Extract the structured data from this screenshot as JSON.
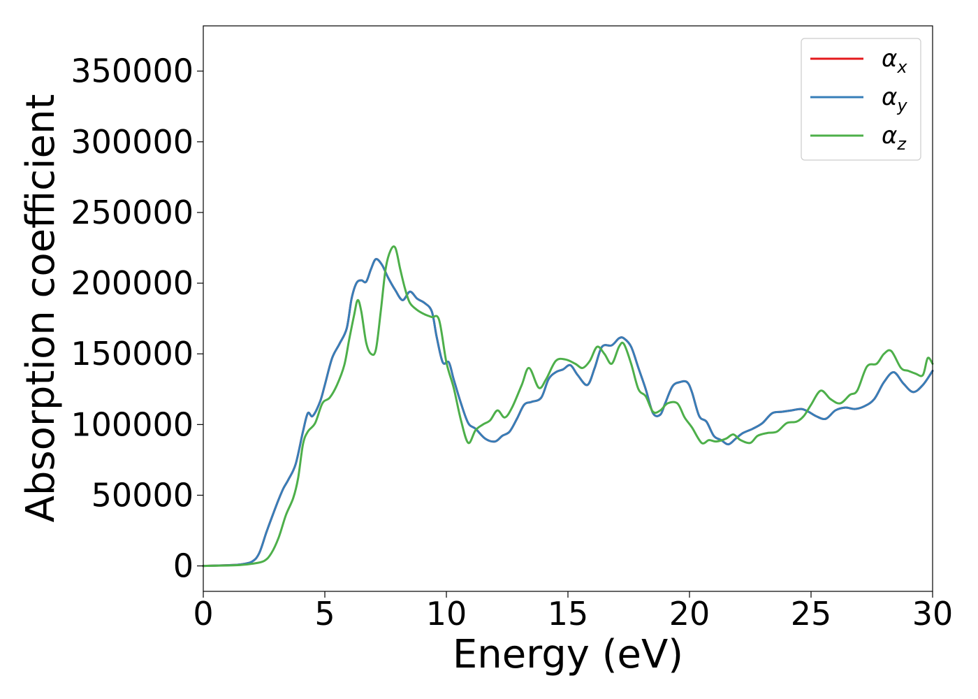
{
  "chart_data": {
    "type": "line",
    "title": "",
    "xlabel": "Energy (eV)",
    "ylabel": "Absorption coefficient",
    "xlim": [
      0,
      30
    ],
    "ylim": [
      -18000,
      382000
    ],
    "x_ticks": [
      0,
      5,
      10,
      15,
      20,
      25,
      30
    ],
    "y_ticks": [
      0,
      50000,
      100000,
      150000,
      200000,
      250000,
      300000,
      350000
    ],
    "grid": false,
    "legend_placement": "top-right",
    "series": [
      {
        "name": "αx",
        "legend_symbol": "α",
        "legend_subscript": "x",
        "color": "#e41a1c",
        "x": [
          0,
          1,
          1.5,
          2,
          2.3,
          2.6,
          2.9,
          3.1,
          3.3,
          3.5,
          3.8,
          4.1,
          4.3,
          4.5,
          4.8,
          5.0,
          5.3,
          5.6,
          5.9,
          6.1,
          6.3,
          6.5,
          6.7,
          6.9,
          7.1,
          7.35,
          7.6,
          7.9,
          8.2,
          8.5,
          8.8,
          9.1,
          9.4,
          9.6,
          9.85,
          10.1,
          10.3,
          10.6,
          10.9,
          11.2,
          11.6,
          12.0,
          12.3,
          12.6,
          12.9,
          13.2,
          13.5,
          13.9,
          14.2,
          14.5,
          14.8,
          15.1,
          15.4,
          15.8,
          16.1,
          16.4,
          16.8,
          17.1,
          17.3,
          17.6,
          17.9,
          18.2,
          18.5,
          18.8,
          19.0,
          19.3,
          19.6,
          19.9,
          20.1,
          20.4,
          20.7,
          21.0,
          21.3,
          21.6,
          21.9,
          22.2,
          22.6,
          23.0,
          23.4,
          23.8,
          24.2,
          24.6,
          24.9,
          25.2,
          25.6,
          26.0,
          26.4,
          26.8,
          27.2,
          27.6,
          28.0,
          28.4,
          28.8,
          29.2,
          29.6,
          30.0
        ],
        "values": [
          0,
          500,
          1000,
          3000,
          9000,
          24000,
          38000,
          47000,
          55000,
          61000,
          72000,
          95000,
          108000,
          106000,
          116000,
          128000,
          147000,
          157000,
          168000,
          189000,
          200000,
          202000,
          201000,
          210000,
          217000,
          213000,
          204000,
          195000,
          188000,
          194000,
          189000,
          186000,
          180000,
          162000,
          144000,
          144000,
          132000,
          115000,
          101000,
          97000,
          90000,
          88000,
          92000,
          95000,
          104000,
          114000,
          116000,
          119000,
          132000,
          137000,
          139000,
          142000,
          135000,
          128000,
          140000,
          155000,
          156000,
          161000,
          161000,
          155000,
          140000,
          125000,
          108000,
          107000,
          115000,
          127000,
          130000,
          130000,
          123000,
          106000,
          102000,
          92000,
          89000,
          86000,
          90000,
          94000,
          97000,
          101000,
          108000,
          109000,
          110000,
          111000,
          109000,
          106000,
          104000,
          110000,
          112000,
          111000,
          113000,
          118000,
          130000,
          137000,
          129000,
          123000,
          128000,
          138000
        ]
      },
      {
        "name": "αy",
        "legend_symbol": "α",
        "legend_subscript": "y",
        "color": "#377eb8",
        "x": [
          0,
          1,
          1.5,
          2,
          2.3,
          2.6,
          2.9,
          3.1,
          3.3,
          3.5,
          3.8,
          4.1,
          4.3,
          4.5,
          4.8,
          5.0,
          5.3,
          5.6,
          5.9,
          6.1,
          6.3,
          6.5,
          6.7,
          6.9,
          7.1,
          7.35,
          7.6,
          7.9,
          8.2,
          8.5,
          8.8,
          9.1,
          9.4,
          9.6,
          9.85,
          10.1,
          10.3,
          10.6,
          10.9,
          11.2,
          11.6,
          12.0,
          12.3,
          12.6,
          12.9,
          13.2,
          13.5,
          13.9,
          14.2,
          14.5,
          14.8,
          15.1,
          15.4,
          15.8,
          16.1,
          16.4,
          16.8,
          17.1,
          17.3,
          17.6,
          17.9,
          18.2,
          18.5,
          18.8,
          19.0,
          19.3,
          19.6,
          19.9,
          20.1,
          20.4,
          20.7,
          21.0,
          21.3,
          21.6,
          21.9,
          22.2,
          22.6,
          23.0,
          23.4,
          23.8,
          24.2,
          24.6,
          24.9,
          25.2,
          25.6,
          26.0,
          26.4,
          26.8,
          27.2,
          27.6,
          28.0,
          28.4,
          28.8,
          29.2,
          29.6,
          30.0
        ],
        "values": [
          0,
          500,
          1000,
          3000,
          9000,
          24000,
          38000,
          47000,
          55000,
          61000,
          72000,
          95000,
          108000,
          106000,
          116000,
          128000,
          147000,
          157000,
          168000,
          189000,
          200000,
          202000,
          201000,
          210000,
          217000,
          213000,
          204000,
          195000,
          188000,
          194000,
          189000,
          186000,
          180000,
          162000,
          144000,
          144000,
          132000,
          115000,
          101000,
          97000,
          90000,
          88000,
          92000,
          95000,
          104000,
          114000,
          116000,
          119000,
          132000,
          137000,
          139000,
          142000,
          135000,
          128000,
          140000,
          155000,
          156000,
          161000,
          161000,
          155000,
          140000,
          125000,
          108000,
          107000,
          115000,
          127000,
          130000,
          130000,
          123000,
          106000,
          102000,
          92000,
          89000,
          86000,
          90000,
          94000,
          97000,
          101000,
          108000,
          109000,
          110000,
          111000,
          109000,
          106000,
          104000,
          110000,
          112000,
          111000,
          113000,
          118000,
          130000,
          137000,
          129000,
          123000,
          128000,
          138000
        ]
      },
      {
        "name": "αz",
        "legend_symbol": "α",
        "legend_subscript": "z",
        "color": "#4daf4a",
        "x": [
          0,
          1,
          1.5,
          2,
          2.5,
          2.8,
          3.1,
          3.4,
          3.7,
          3.9,
          4.1,
          4.3,
          4.6,
          4.9,
          5.2,
          5.5,
          5.8,
          6.0,
          6.2,
          6.35,
          6.5,
          6.7,
          6.9,
          7.1,
          7.3,
          7.5,
          7.7,
          7.9,
          8.1,
          8.3,
          8.5,
          8.8,
          9.1,
          9.4,
          9.7,
          10.0,
          10.3,
          10.6,
          10.9,
          11.2,
          11.5,
          11.8,
          12.1,
          12.4,
          12.7,
          13.1,
          13.4,
          13.8,
          14.1,
          14.5,
          14.9,
          15.3,
          15.6,
          15.9,
          16.2,
          16.5,
          16.8,
          17.1,
          17.3,
          17.6,
          17.9,
          18.2,
          18.5,
          18.8,
          19.1,
          19.5,
          19.8,
          20.1,
          20.5,
          20.8,
          21.1,
          21.5,
          21.8,
          22.1,
          22.5,
          22.8,
          23.2,
          23.6,
          24.0,
          24.4,
          24.7,
          25.0,
          25.4,
          25.8,
          26.2,
          26.6,
          26.9,
          27.3,
          27.7,
          28.0,
          28.3,
          28.7,
          29.0,
          29.3,
          29.6,
          29.8,
          30.0
        ],
        "values": [
          0,
          300,
          600,
          1500,
          3500,
          9000,
          20000,
          36000,
          48000,
          62000,
          86000,
          95000,
          101000,
          115000,
          119000,
          128000,
          142000,
          160000,
          177000,
          188000,
          180000,
          158000,
          150000,
          153000,
          180000,
          210000,
          223000,
          225000,
          210000,
          196000,
          186000,
          181000,
          178000,
          176000,
          174000,
          144000,
          126000,
          103000,
          87000,
          96000,
          100000,
          103000,
          110000,
          105000,
          112000,
          128000,
          140000,
          126000,
          132000,
          145000,
          146000,
          143000,
          140000,
          145000,
          155000,
          150000,
          143000,
          155000,
          157000,
          143000,
          125000,
          120000,
          109000,
          110000,
          115000,
          115000,
          105000,
          98000,
          87000,
          89000,
          88000,
          90000,
          93000,
          89000,
          87000,
          92000,
          94000,
          95000,
          101000,
          102000,
          106000,
          114000,
          124000,
          118000,
          115000,
          121000,
          124000,
          141000,
          143000,
          150000,
          152000,
          140000,
          138000,
          136000,
          135000,
          147000,
          143000
        ]
      }
    ]
  }
}
